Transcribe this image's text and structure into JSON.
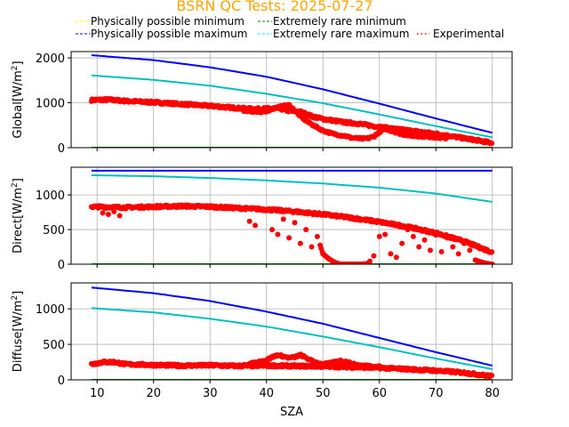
{
  "chart_data": {
    "type": "scatter",
    "title": "BSRN QC Tests: 2025-07-27",
    "title_color": "#ffa500",
    "xlabel": "SZA",
    "xlim": [
      5.4,
      83.5
    ],
    "xticks": [
      10,
      20,
      30,
      40,
      50,
      60,
      70,
      80
    ],
    "grid": true,
    "legend": {
      "placement": "top",
      "entries": [
        {
          "label": "Physically possible minimum",
          "color": "#ffff00",
          "style": "dashed"
        },
        {
          "label": "Extremely rare minimum",
          "color": "#008000",
          "style": "dashed"
        },
        {
          "label": "Physically possible maximum",
          "color": "#0000ff",
          "style": "dashed"
        },
        {
          "label": "Extremely rare maximum",
          "color": "#00ffff",
          "style": "dashed"
        },
        {
          "label": "Experimental",
          "color": "#ff0000",
          "style": "dotted"
        }
      ]
    },
    "panels": [
      {
        "name": "global",
        "ylabel": "Global[W/m²]",
        "ylabel_base": "Global[W/m",
        "ylim": [
          0,
          2140
        ],
        "yticks": [
          0,
          1000,
          2000
        ],
        "series": [
          {
            "name": "Physically possible minimum",
            "color": "#ffff00",
            "x": [
              9,
              80
            ],
            "y": [
              -4,
              -4
            ]
          },
          {
            "name": "Extremely rare minimum",
            "color": "#008000",
            "x": [
              9,
              80
            ],
            "y": [
              0,
              0
            ]
          },
          {
            "name": "Physically possible maximum",
            "color": "#0000ff",
            "x": [
              9,
              20,
              30,
              40,
              50,
              60,
              70,
              80
            ],
            "y": [
              2060,
              1950,
              1790,
              1580,
              1300,
              980,
              650,
              330
            ]
          },
          {
            "name": "Extremely rare maximum",
            "color": "#00bfbf",
            "x": [
              9,
              20,
              30,
              40,
              50,
              60,
              70,
              80
            ],
            "y": [
              1610,
              1510,
              1380,
              1200,
              990,
              740,
              480,
              230
            ]
          },
          {
            "name": "Experimental",
            "color": "#ff0000",
            "type": "scatter",
            "x": [
              9,
              12,
              15,
              20,
              25,
              30,
              35,
              38,
              40,
              42,
              44,
              46,
              48,
              50,
              52,
              54,
              56,
              58,
              60,
              62,
              64,
              66,
              68,
              70,
              72,
              74,
              76,
              78,
              80
            ],
            "y": [
              1060,
              1070,
              1040,
              1010,
              970,
              930,
              880,
              860,
              870,
              880,
              820,
              800,
              700,
              640,
              600,
              560,
              540,
              500,
              460,
              430,
              400,
              370,
              340,
              310,
              270,
              230,
              190,
              150,
              100
            ],
            "dips": [
              {
                "x": [
                  36,
                  39,
                  42,
                  44,
                  46,
                  47,
                  48,
                  50,
                  52,
                  54,
                  55,
                  57,
                  58,
                  59,
                  60,
                  61,
                  62,
                  64,
                  66,
                  68,
                  70,
                  72
                ],
                "y": [
                  830,
                  780,
                  900,
                  950,
                  700,
                  600,
                  520,
                  380,
                  300,
                  260,
                  220,
                  200,
                  210,
                  250,
                  350,
                  420,
                  380,
                  300,
                  260,
                  250,
                  230,
                  210
                ]
              }
            ]
          }
        ]
      },
      {
        "name": "direct",
        "ylabel": "Direct[W/m²]",
        "ylabel_base": "Direct[W/m",
        "ylim": [
          0,
          1400
        ],
        "yticks": [
          0,
          500,
          1000
        ],
        "series": [
          {
            "name": "Physically possible minimum",
            "color": "#ffff00",
            "x": [
              9,
              80
            ],
            "y": [
              -3,
              -3
            ]
          },
          {
            "name": "Extremely rare minimum",
            "color": "#008000",
            "x": [
              9,
              80
            ],
            "y": [
              0,
              0
            ]
          },
          {
            "name": "Physically possible maximum",
            "color": "#0000ff",
            "x": [
              9,
              80
            ],
            "y": [
              1350,
              1350
            ]
          },
          {
            "name": "Extremely rare maximum",
            "color": "#00bfbf",
            "x": [
              9,
              20,
              30,
              40,
              50,
              60,
              70,
              80
            ],
            "y": [
              1285,
              1270,
              1245,
              1210,
              1165,
              1105,
              1020,
              900
            ]
          },
          {
            "name": "Experimental",
            "color": "#ff0000",
            "type": "scatter",
            "x": [
              9,
              15,
              20,
              25,
              30,
              35,
              40,
              45,
              50,
              55,
              60,
              65,
              70,
              75,
              80
            ],
            "y": [
              830,
              820,
              830,
              840,
              830,
              810,
              790,
              760,
              720,
              670,
              610,
              540,
              450,
              330,
              170
            ],
            "dips": [
              {
                "x": [
                  11,
                  12,
                  13,
                  14,
                  37,
                  38,
                  41,
                  42,
                  43,
                  44,
                  45,
                  46,
                  47,
                  48,
                  49,
                  50,
                  51,
                  52,
                  53,
                  54,
                  55,
                  56,
                  57,
                  58,
                  59,
                  60,
                  61,
                  62,
                  63,
                  64,
                  65,
                  66,
                  67,
                  68,
                  69,
                  70,
                  71,
                  72,
                  73,
                  74,
                  75,
                  76,
                  77,
                  78,
                  79,
                  80
                ],
                "y": [
                  740,
                  720,
                  760,
                  700,
                  620,
                  560,
                  500,
                  430,
                  650,
                  380,
                  600,
                  300,
                  500,
                  250,
                  400,
                  150,
                  80,
                  30,
                  0,
                  0,
                  0,
                  0,
                  0,
                  10,
                  120,
                  400,
                  430,
                  150,
                  100,
                  300,
                  500,
                  400,
                  250,
                  350,
                  200,
                  420,
                  180,
                  380,
                  250,
                  150,
                  300,
                  200,
                  60,
                  30,
                  10,
                  0
                ]
              }
            ]
          }
        ]
      },
      {
        "name": "diffuse",
        "ylabel": "Diffuse[W/m²]",
        "ylabel_base": "Diffuse[W/m",
        "ylim": [
          0,
          1365
        ],
        "yticks": [
          0,
          500,
          1000
        ],
        "series": [
          {
            "name": "Physically possible minimum",
            "color": "#ffff00",
            "x": [
              9,
              80
            ],
            "y": [
              -3,
              -3
            ]
          },
          {
            "name": "Extremely rare minimum",
            "color": "#008000",
            "x": [
              9,
              80
            ],
            "y": [
              0,
              0
            ]
          },
          {
            "name": "Physically possible maximum",
            "color": "#0000ff",
            "x": [
              9,
              20,
              30,
              40,
              50,
              60,
              70,
              80
            ],
            "y": [
              1300,
              1220,
              1110,
              960,
              790,
              590,
              390,
              200
            ]
          },
          {
            "name": "Extremely rare maximum",
            "color": "#00bfbf",
            "x": [
              9,
              20,
              30,
              40,
              50,
              60,
              70,
              80
            ],
            "y": [
              1010,
              950,
              860,
              750,
              610,
              460,
              300,
              150
            ]
          },
          {
            "name": "Experimental",
            "color": "#ff0000",
            "type": "scatter",
            "x": [
              9,
              11,
              13,
              15,
              20,
              25,
              30,
              35,
              40,
              45,
              50,
              55,
              60,
              65,
              70,
              75,
              80
            ],
            "y": [
              220,
              250,
              250,
              220,
              210,
              200,
              205,
              195,
              200,
              195,
              190,
              180,
              170,
              150,
              130,
              100,
              50
            ],
            "dips": [
              {
                "x": [
                  36,
                  38,
                  40,
                  41,
                  42,
                  43,
                  44,
                  45,
                  46,
                  47,
                  48,
                  49,
                  50,
                  51,
                  52,
                  53,
                  54,
                  55,
                  56,
                  57,
                  58,
                  59,
                  60
                ],
                "y": [
                  210,
                  240,
                  280,
                  320,
                  350,
                  330,
                  310,
                  320,
                  350,
                  310,
                  270,
                  240,
                  220,
                  230,
                  250,
                  270,
                  260,
                  230,
                  210,
                  200,
                  200,
                  190,
                  190
                ]
              }
            ]
          }
        ]
      }
    ]
  }
}
